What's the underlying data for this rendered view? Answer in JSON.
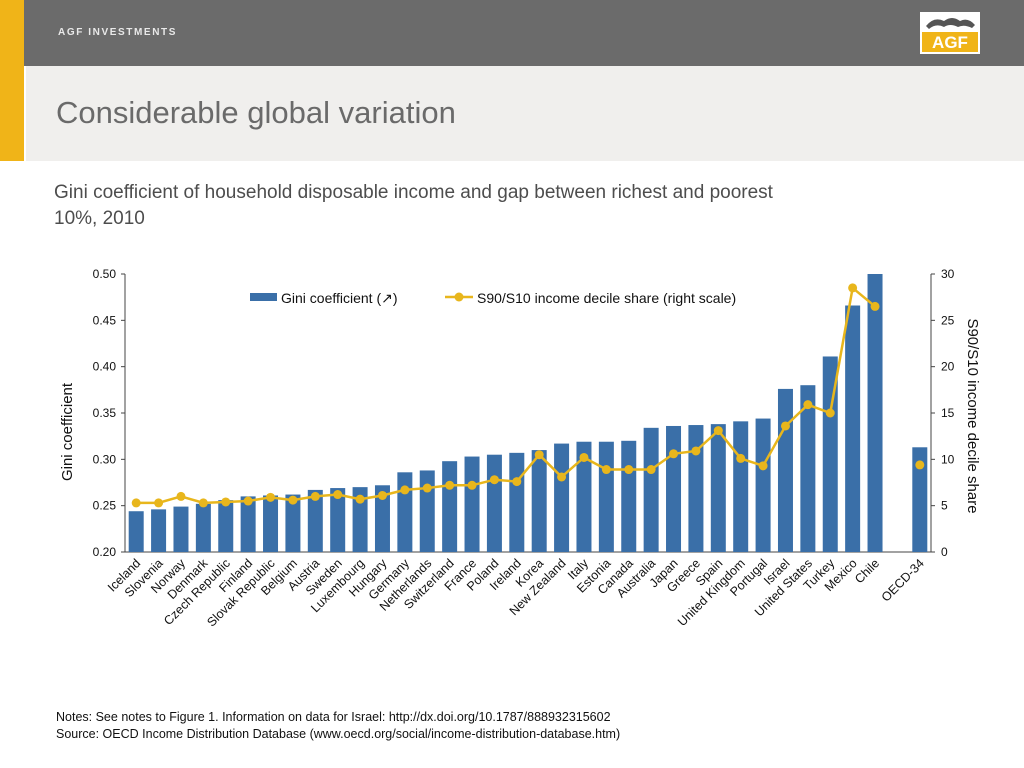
{
  "header": {
    "brand": "AGF INVESTMENTS",
    "logo_text": "AGF",
    "title": "Considerable global variation"
  },
  "colors": {
    "bar": "#3a6fa8",
    "line": "#e8b61c",
    "gold": "#f0b418",
    "header_bg": "#6b6b6b"
  },
  "subtitle": "Gini coefficient of household disposable income and gap between richest and poorest 10%, 2010",
  "chart_data": {
    "type": "bar",
    "categories": [
      "Iceland",
      "Slovenia",
      "Norway",
      "Denmark",
      "Czech Republic",
      "Finland",
      "Slovak Republic",
      "Belgium",
      "Austria",
      "Sweden",
      "Luxembourg",
      "Hungary",
      "Germany",
      "Netherlands",
      "Switzerland",
      "France",
      "Poland",
      "Ireland",
      "Korea",
      "New Zealand",
      "Italy",
      "Estonia",
      "Canada",
      "Australia",
      "Japan",
      "Greece",
      "Spain",
      "United Kingdom",
      "Portugal",
      "Israel",
      "United States",
      "Turkey",
      "Mexico",
      "Chile",
      "",
      "OECD-34"
    ],
    "series": [
      {
        "name": "Gini coefficient (↗)",
        "type": "bar",
        "axis": "left",
        "values": [
          0.244,
          0.246,
          0.249,
          0.252,
          0.256,
          0.26,
          0.261,
          0.262,
          0.267,
          0.269,
          0.27,
          0.272,
          0.286,
          0.288,
          0.298,
          0.303,
          0.305,
          0.307,
          0.31,
          0.317,
          0.319,
          0.319,
          0.32,
          0.334,
          0.336,
          0.337,
          0.338,
          0.341,
          0.344,
          0.376,
          0.38,
          0.411,
          0.466,
          0.503,
          null,
          0.313
        ]
      },
      {
        "name": "S90/S10 income decile share (right scale)",
        "type": "line",
        "axis": "right",
        "values": [
          5.3,
          5.3,
          6.0,
          5.3,
          5.4,
          5.5,
          5.9,
          5.6,
          6.0,
          6.2,
          5.7,
          6.1,
          6.7,
          6.9,
          7.2,
          7.2,
          7.8,
          7.6,
          10.5,
          8.1,
          10.2,
          8.9,
          8.9,
          8.9,
          10.6,
          10.9,
          13.1,
          10.1,
          9.3,
          13.6,
          15.9,
          15.0,
          28.5,
          26.5,
          null,
          9.4
        ]
      }
    ],
    "ylabel": "Gini coefficient",
    "y2label": "S90/S10 income decile share",
    "ylim": [
      0.2,
      0.5
    ],
    "y2lim": [
      0,
      30
    ],
    "yticks": [
      "0.20",
      "0.25",
      "0.30",
      "0.35",
      "0.40",
      "0.45",
      "0.50"
    ],
    "y2ticks": [
      "0",
      "5",
      "10",
      "15",
      "20",
      "25",
      "30"
    ],
    "legend_position": "top",
    "grid": false
  },
  "notes": [
    "Notes: See notes to Figure 1. Information on data for Israel: http://dx.doi.org/10.1787/888932315602",
    "Source: OECD Income Distribution Database (www.oecd.org/social/income-distribution-database.htm)"
  ]
}
